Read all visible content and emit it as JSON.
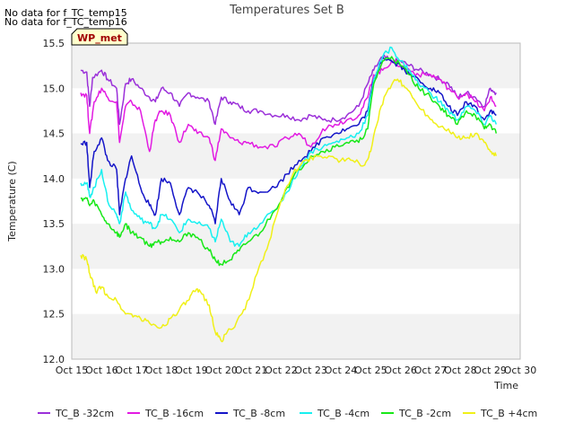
{
  "notes": [
    "No data for f_TC_temp15",
    "No data for f_TC_temp16"
  ],
  "chart_data": {
    "type": "line",
    "title": "Temperatures Set B",
    "xlabel": "Time",
    "ylabel": "Temperature (C)",
    "annotation": "WP_met",
    "xlim": [
      15,
      30
    ],
    "ylim": [
      12.0,
      15.5
    ],
    "x_ticks": [
      "Oct 15",
      "Oct 16",
      "Oct 17",
      "Oct 18",
      "Oct 19",
      "Oct 20",
      "Oct 21",
      "Oct 22",
      "Oct 23",
      "Oct 24",
      "Oct 25",
      "Oct 26",
      "Oct 27",
      "Oct 28",
      "Oct 29",
      "Oct 30"
    ],
    "y_ticks": [
      "12.0",
      "12.5",
      "13.0",
      "13.5",
      "14.0",
      "14.5",
      "15.0",
      "15.5"
    ],
    "grid": "horizontal bands",
    "legend_position": "bottom",
    "series": [
      {
        "name": "TC_B -32cm",
        "color": "#9b30d9",
        "x": [
          15.3,
          15.5,
          15.6,
          15.7,
          16.0,
          16.2,
          16.5,
          16.6,
          16.8,
          17.0,
          17.3,
          17.6,
          17.8,
          18.0,
          18.3,
          18.6,
          18.9,
          19.2,
          19.6,
          19.8,
          20.0,
          20.3,
          20.6,
          20.9,
          21.3,
          21.8,
          22.2,
          22.6,
          23.0,
          23.4,
          23.8,
          24.2,
          24.6,
          24.9,
          25.1,
          25.4,
          25.7,
          26.0,
          26.3,
          26.6,
          27.0,
          27.3,
          27.6,
          27.9,
          28.2,
          28.5,
          28.8,
          29.0,
          29.2
        ],
        "y": [
          15.2,
          15.18,
          14.8,
          15.12,
          15.2,
          15.1,
          15.0,
          14.6,
          15.05,
          15.1,
          15.0,
          14.9,
          14.85,
          15.0,
          14.95,
          14.8,
          14.95,
          14.9,
          14.85,
          14.6,
          14.9,
          14.85,
          14.8,
          14.75,
          14.75,
          14.7,
          14.7,
          14.65,
          14.7,
          14.65,
          14.65,
          14.7,
          14.8,
          15.05,
          15.2,
          15.35,
          15.3,
          15.3,
          15.25,
          15.2,
          15.15,
          15.1,
          15.05,
          14.9,
          14.95,
          14.9,
          14.8,
          15.0,
          14.95
        ]
      },
      {
        "name": "TC_B -16cm",
        "color": "#e21be2",
        "x": [
          15.3,
          15.5,
          15.6,
          15.75,
          16.0,
          16.2,
          16.5,
          16.6,
          16.8,
          17.0,
          17.3,
          17.6,
          17.8,
          18.0,
          18.3,
          18.6,
          18.9,
          19.2,
          19.6,
          19.8,
          20.0,
          20.3,
          20.6,
          20.9,
          21.3,
          21.8,
          22.2,
          22.6,
          23.0,
          23.4,
          23.8,
          24.2,
          24.6,
          24.9,
          25.1,
          25.4,
          25.7,
          26.0,
          26.3,
          26.6,
          27.0,
          27.3,
          27.6,
          27.9,
          28.2,
          28.5,
          28.8,
          29.0,
          29.2
        ],
        "y": [
          14.95,
          14.92,
          14.5,
          14.85,
          15.0,
          14.9,
          14.85,
          14.4,
          14.8,
          14.85,
          14.75,
          14.3,
          14.65,
          14.75,
          14.7,
          14.4,
          14.6,
          14.5,
          14.45,
          14.2,
          14.55,
          14.45,
          14.4,
          14.4,
          14.35,
          14.35,
          14.45,
          14.5,
          14.35,
          14.55,
          14.6,
          14.65,
          14.7,
          14.9,
          15.15,
          15.2,
          15.3,
          15.25,
          15.2,
          15.15,
          15.15,
          15.1,
          15.0,
          14.9,
          14.95,
          14.85,
          14.75,
          14.9,
          14.8
        ]
      },
      {
        "name": "TC_B -8cm",
        "color": "#1515c8",
        "x": [
          15.3,
          15.5,
          15.6,
          15.75,
          16.0,
          16.2,
          16.5,
          16.6,
          16.8,
          17.0,
          17.3,
          17.6,
          17.8,
          18.0,
          18.3,
          18.6,
          18.9,
          19.2,
          19.6,
          19.8,
          20.0,
          20.3,
          20.6,
          20.9,
          21.3,
          21.8,
          22.2,
          22.6,
          23.0,
          23.4,
          23.8,
          24.2,
          24.6,
          24.9,
          25.1,
          25.4,
          25.7,
          26.0,
          26.3,
          26.6,
          27.0,
          27.3,
          27.6,
          27.9,
          28.2,
          28.5,
          28.8,
          29.0,
          29.2
        ],
        "y": [
          14.38,
          14.4,
          13.9,
          14.3,
          14.45,
          14.2,
          14.1,
          13.6,
          14.0,
          14.25,
          13.9,
          13.7,
          13.6,
          14.0,
          13.95,
          13.6,
          13.9,
          13.85,
          13.7,
          13.5,
          14.0,
          13.75,
          13.6,
          13.9,
          13.85,
          13.9,
          14.05,
          14.2,
          14.3,
          14.45,
          14.5,
          14.55,
          14.6,
          14.75,
          15.1,
          15.35,
          15.3,
          15.25,
          15.15,
          15.1,
          15.0,
          14.95,
          14.8,
          14.7,
          14.85,
          14.8,
          14.65,
          14.75,
          14.7
        ]
      },
      {
        "name": "TC_B -4cm",
        "color": "#18f0f0",
        "x": [
          15.3,
          15.5,
          15.6,
          15.75,
          16.0,
          16.2,
          16.5,
          16.6,
          16.8,
          17.0,
          17.3,
          17.6,
          17.8,
          18.0,
          18.3,
          18.6,
          18.9,
          19.2,
          19.6,
          19.8,
          20.0,
          20.3,
          20.6,
          20.9,
          21.3,
          21.8,
          22.2,
          22.6,
          23.0,
          23.4,
          23.8,
          24.2,
          24.6,
          24.9,
          25.1,
          25.4,
          25.7,
          26.0,
          26.3,
          26.6,
          27.0,
          27.3,
          27.6,
          27.9,
          28.2,
          28.5,
          28.8,
          29.0,
          29.2
        ],
        "y": [
          13.95,
          13.95,
          13.8,
          13.9,
          14.1,
          13.75,
          13.6,
          13.5,
          13.85,
          13.65,
          13.55,
          13.5,
          13.45,
          13.6,
          13.55,
          13.4,
          13.55,
          13.5,
          13.45,
          13.3,
          13.55,
          13.3,
          13.25,
          13.4,
          13.5,
          13.65,
          13.85,
          14.1,
          14.3,
          14.35,
          14.4,
          14.45,
          14.5,
          14.7,
          15.1,
          15.35,
          15.45,
          15.3,
          15.2,
          15.05,
          14.95,
          14.85,
          14.75,
          14.65,
          14.8,
          14.75,
          14.6,
          14.7,
          14.6
        ]
      },
      {
        "name": "TC_B -2cm",
        "color": "#18e818",
        "x": [
          15.3,
          15.5,
          15.6,
          15.75,
          16.0,
          16.2,
          16.5,
          16.6,
          16.8,
          17.0,
          17.3,
          17.6,
          17.8,
          18.0,
          18.3,
          18.6,
          18.9,
          19.2,
          19.6,
          19.8,
          20.0,
          20.3,
          20.6,
          20.9,
          21.3,
          21.8,
          22.2,
          22.6,
          23.0,
          23.4,
          23.8,
          24.2,
          24.6,
          24.9,
          25.1,
          25.4,
          25.7,
          26.0,
          26.3,
          26.6,
          27.0,
          27.3,
          27.6,
          27.9,
          28.2,
          28.5,
          28.8,
          29.0,
          29.2
        ],
        "y": [
          13.78,
          13.78,
          13.7,
          13.75,
          13.6,
          13.5,
          13.4,
          13.35,
          13.5,
          13.4,
          13.35,
          13.25,
          13.3,
          13.3,
          13.35,
          13.3,
          13.4,
          13.35,
          13.2,
          13.1,
          13.05,
          13.1,
          13.2,
          13.3,
          13.4,
          13.65,
          13.9,
          14.1,
          14.25,
          14.3,
          14.35,
          14.4,
          14.4,
          14.55,
          15.05,
          15.3,
          15.35,
          15.25,
          15.15,
          15.0,
          14.9,
          14.8,
          14.7,
          14.6,
          14.75,
          14.7,
          14.55,
          14.6,
          14.5
        ]
      },
      {
        "name": "TC_B +4cm",
        "color": "#f0f018",
        "x": [
          15.3,
          15.5,
          15.6,
          15.8,
          16.0,
          16.2,
          16.5,
          16.8,
          17.0,
          17.3,
          17.6,
          18.0,
          18.3,
          18.6,
          18.9,
          19.1,
          19.3,
          19.6,
          19.8,
          20.0,
          20.2,
          20.5,
          20.8,
          21.2,
          21.6,
          22.0,
          22.4,
          22.8,
          23.2,
          23.6,
          24.0,
          24.4,
          24.8,
          25.0,
          25.3,
          25.6,
          25.9,
          26.2,
          26.5,
          26.9,
          27.2,
          27.6,
          27.9,
          28.2,
          28.5,
          28.8,
          29.0,
          29.2
        ],
        "y": [
          13.15,
          13.1,
          12.95,
          12.75,
          12.8,
          12.7,
          12.65,
          12.5,
          12.5,
          12.45,
          12.4,
          12.35,
          12.45,
          12.55,
          12.65,
          12.75,
          12.75,
          12.6,
          12.3,
          12.2,
          12.3,
          12.4,
          12.55,
          12.95,
          13.3,
          13.75,
          14.05,
          14.2,
          14.25,
          14.25,
          14.2,
          14.2,
          14.15,
          14.3,
          14.75,
          15.0,
          15.1,
          15.0,
          14.85,
          14.7,
          14.6,
          14.55,
          14.45,
          14.45,
          14.5,
          14.4,
          14.3,
          14.25
        ]
      }
    ]
  }
}
